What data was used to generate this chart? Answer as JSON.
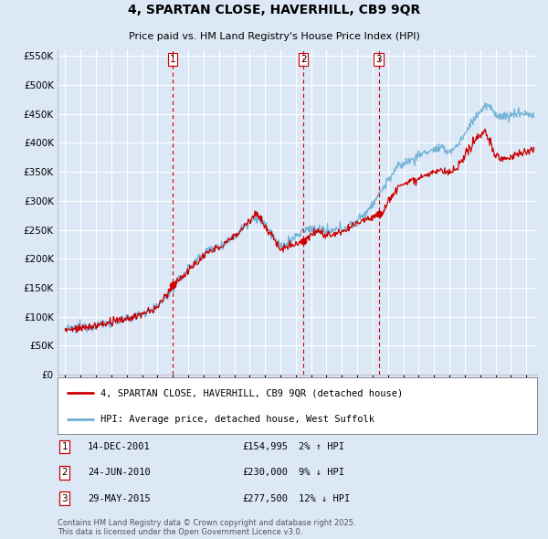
{
  "title": "4, SPARTAN CLOSE, HAVERHILL, CB9 9QR",
  "subtitle": "Price paid vs. HM Land Registry's House Price Index (HPI)",
  "legend_line1": "4, SPARTAN CLOSE, HAVERHILL, CB9 9QR (detached house)",
  "legend_line2": "HPI: Average price, detached house, West Suffolk",
  "transactions": [
    {
      "num": 1,
      "date": "14-DEC-2001",
      "price": 154995,
      "pct": "2%",
      "dir": "↑",
      "x_year": 2002.0
    },
    {
      "num": 2,
      "date": "24-JUN-2010",
      "price": 230000,
      "pct": "9%",
      "dir": "↓",
      "x_year": 2010.5
    },
    {
      "num": 3,
      "date": "29-MAY-2015",
      "price": 277500,
      "pct": "12%",
      "dir": "↓",
      "x_year": 2015.4
    }
  ],
  "hpi_color": "#6baed6",
  "price_color": "#cc0000",
  "dashed_line_color": "#cc0000",
  "background_color": "#dce8f5",
  "plot_bg_color": "#dce8f5",
  "ylim": [
    0,
    560000
  ],
  "yticks": [
    0,
    50000,
    100000,
    150000,
    200000,
    250000,
    300000,
    350000,
    400000,
    450000,
    500000,
    550000
  ],
  "xlim_start": 1994.5,
  "xlim_end": 2025.7,
  "footer": "Contains HM Land Registry data © Crown copyright and database right 2025.\nThis data is licensed under the Open Government Licence v3.0."
}
